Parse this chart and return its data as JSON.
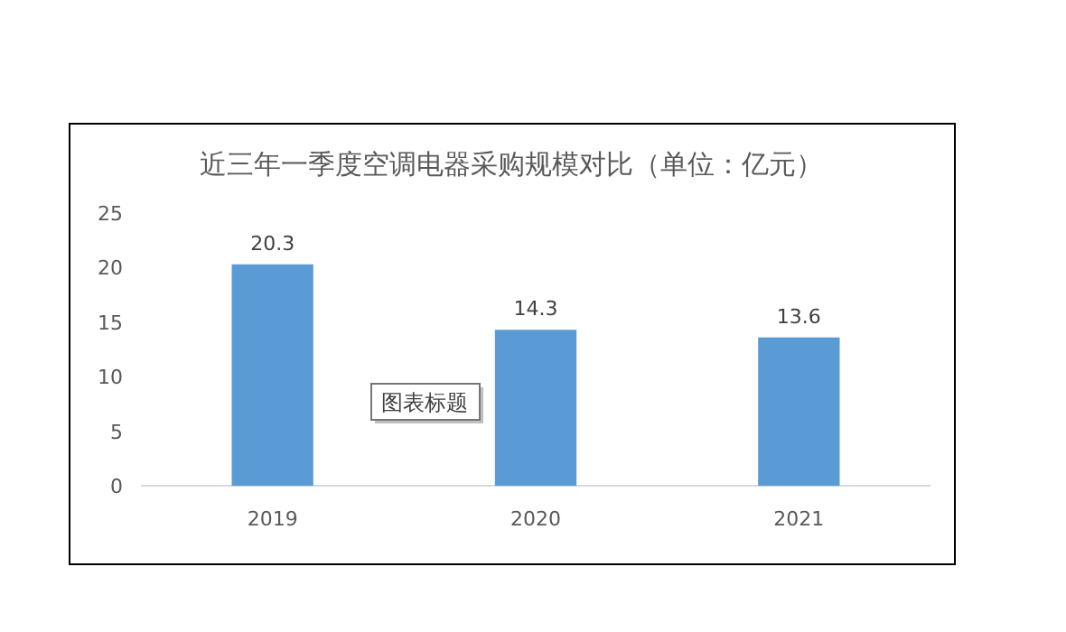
{
  "chart_data": {
    "type": "bar",
    "title": "近三年一季度空调电器采购规模对比（单位：亿元）",
    "categories": [
      "2019",
      "2020",
      "2021"
    ],
    "values": [
      20.3,
      14.3,
      13.6
    ],
    "color": "#5b9bd5",
    "ylim": [
      0,
      25
    ],
    "yticks": [
      0,
      5,
      10,
      15,
      20,
      25
    ],
    "data_labels": true,
    "annotations": [
      "图表标题"
    ]
  }
}
